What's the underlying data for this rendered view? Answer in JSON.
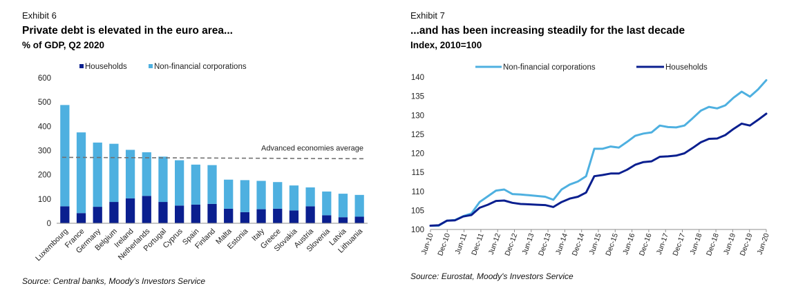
{
  "left": {
    "exhibit": "Exhibit 6",
    "title": "Private debt is elevated in the euro area...",
    "subtitle": "% of GDP, Q2 2020",
    "source": "Source: Central banks, Moody's Investors Service",
    "colors": {
      "households": "#0a1f8f",
      "corporations": "#4eb0e0",
      "average": "#707070"
    },
    "chart_data": {
      "type": "bar",
      "stacked": true,
      "categories": [
        "Luxembourg",
        "France",
        "Germany",
        "Belgium",
        "Ireland",
        "Netherlands",
        "Portugal",
        "Cyprus",
        "Spain",
        "Finland",
        "Malta",
        "Estonia",
        "Italy",
        "Greece",
        "Slovakia",
        "Austria",
        "Slovenia",
        "Latvia",
        "Lithuania"
      ],
      "series": [
        {
          "name": "Households",
          "values": [
            70,
            42,
            68,
            88,
            103,
            113,
            88,
            73,
            77,
            80,
            60,
            46,
            58,
            60,
            53,
            70,
            33,
            25,
            27
          ]
        },
        {
          "name": "Non-financial corporations",
          "values": [
            418,
            333,
            265,
            240,
            200,
            180,
            187,
            187,
            165,
            160,
            120,
            132,
            117,
            110,
            103,
            78,
            98,
            97,
            90
          ]
        }
      ],
      "reference_line": {
        "label": "Advanced economies average",
        "value": 272
      },
      "ylim": [
        0,
        600
      ],
      "yticks": [
        0,
        100,
        200,
        300,
        400,
        500,
        600
      ],
      "legend": "top-left",
      "grid": false
    }
  },
  "right": {
    "exhibit": "Exhibit 7",
    "title": "...and has been increasing steadily for the last decade",
    "subtitle": "Index, 2010=100",
    "source": "Source: Eurostat, Moody's Investors Service",
    "colors": {
      "corporations": "#4eb0e0",
      "households": "#0a1f8f"
    },
    "chart_data": {
      "type": "line",
      "x_labels": [
        "Jun-10",
        "Dec-10",
        "Jun-11",
        "Dec-11",
        "Jun-12",
        "Dec-12",
        "Jun-13",
        "Dec-13",
        "Jun-14",
        "Dec-14",
        "Jun-15",
        "Dec-15",
        "Jun-16",
        "Dec-16",
        "Jun-17",
        "Dec-17",
        "Jun-18",
        "Dec-18",
        "Jun-19",
        "Dec-19",
        "Jun-20"
      ],
      "series": [
        {
          "name": "Non-financial corporations",
          "values": [
            101,
            101,
            102.3,
            102.5,
            103.5,
            104.2,
            107.2,
            108.7,
            110.2,
            110.5,
            109.3,
            109.2,
            109,
            108.8,
            108.6,
            107.8,
            110.5,
            111.8,
            112.6,
            114,
            121.2,
            121.2,
            121.8,
            121.5,
            123,
            124.6,
            125.2,
            125.5,
            127.3,
            126.9,
            126.8,
            127.3,
            129.2,
            131.2,
            132.2,
            131.8,
            132.6,
            134.6,
            136.2,
            134.9,
            136.8,
            139.2
          ]
        },
        {
          "name": "Households",
          "values": [
            101,
            101.1,
            102.3,
            102.4,
            103.4,
            103.8,
            105.7,
            106.5,
            107.5,
            107.6,
            107,
            106.7,
            106.6,
            106.5,
            106.4,
            105.9,
            107.2,
            108.1,
            108.6,
            109.7,
            114,
            114.3,
            114.7,
            114.7,
            115.7,
            117,
            117.7,
            117.9,
            119.1,
            119.2,
            119.4,
            120,
            121.4,
            122.9,
            123.8,
            123.9,
            124.8,
            126.4,
            127.8,
            127.3,
            128.8,
            130.4
          ]
        }
      ],
      "ylim": [
        100,
        140
      ],
      "yticks": [
        100,
        105,
        110,
        115,
        120,
        125,
        130,
        135,
        140
      ],
      "legend": "top",
      "grid": false
    }
  }
}
